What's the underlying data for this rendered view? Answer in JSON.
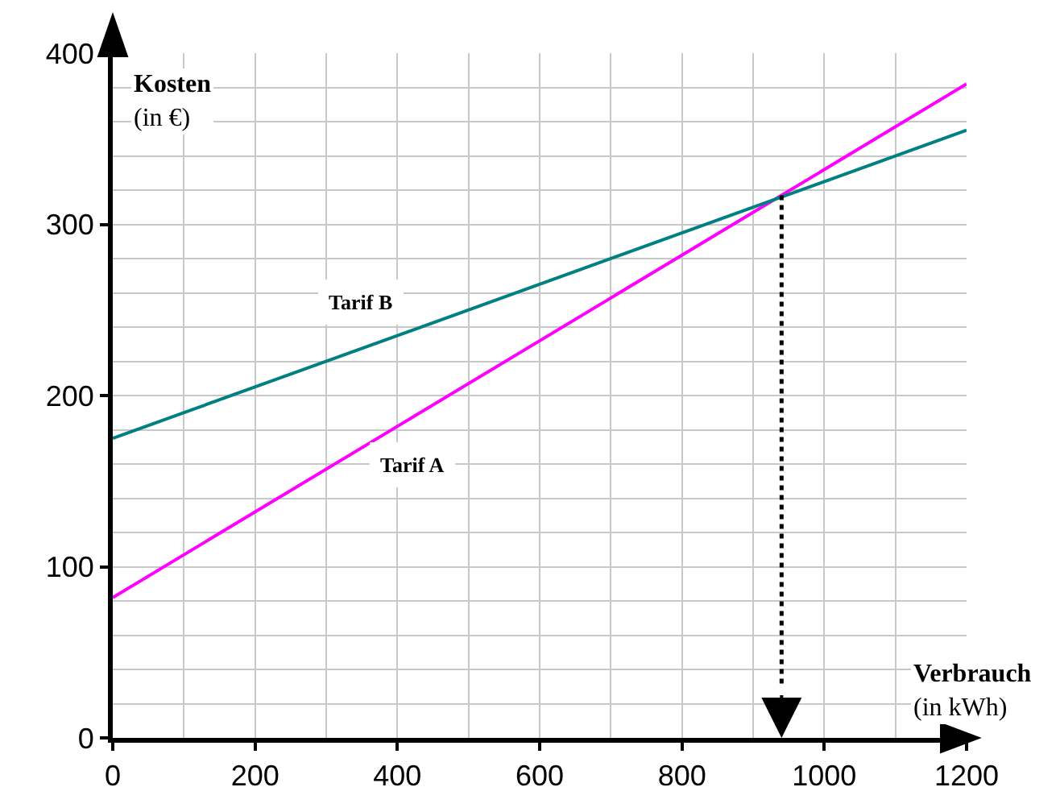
{
  "chart_data": {
    "type": "line",
    "xlabel": "Verbrauch\n(in kWh)",
    "ylabel": "Kosten\n(in €)",
    "x": [
      0,
      1200
    ],
    "series": [
      {
        "name": "Tarif A",
        "color": "#ff00ff",
        "values": [
          82,
          382
        ]
      },
      {
        "name": "Tarif B",
        "color": "#008080",
        "values": [
          175,
          355
        ]
      }
    ],
    "ref_lines": [
      {
        "axis": "x",
        "value": 940,
        "color": "#000000",
        "line_style": "dotted"
      }
    ],
    "xlim": [
      0,
      1200
    ],
    "xticks": [
      0,
      200,
      400,
      600,
      800,
      1000,
      1200
    ],
    "ylim": [
      0,
      400
    ],
    "yticks": [
      0,
      100,
      200,
      300,
      400
    ],
    "grid": true,
    "legend": false,
    "marker": "none",
    "line_style": "solid"
  }
}
